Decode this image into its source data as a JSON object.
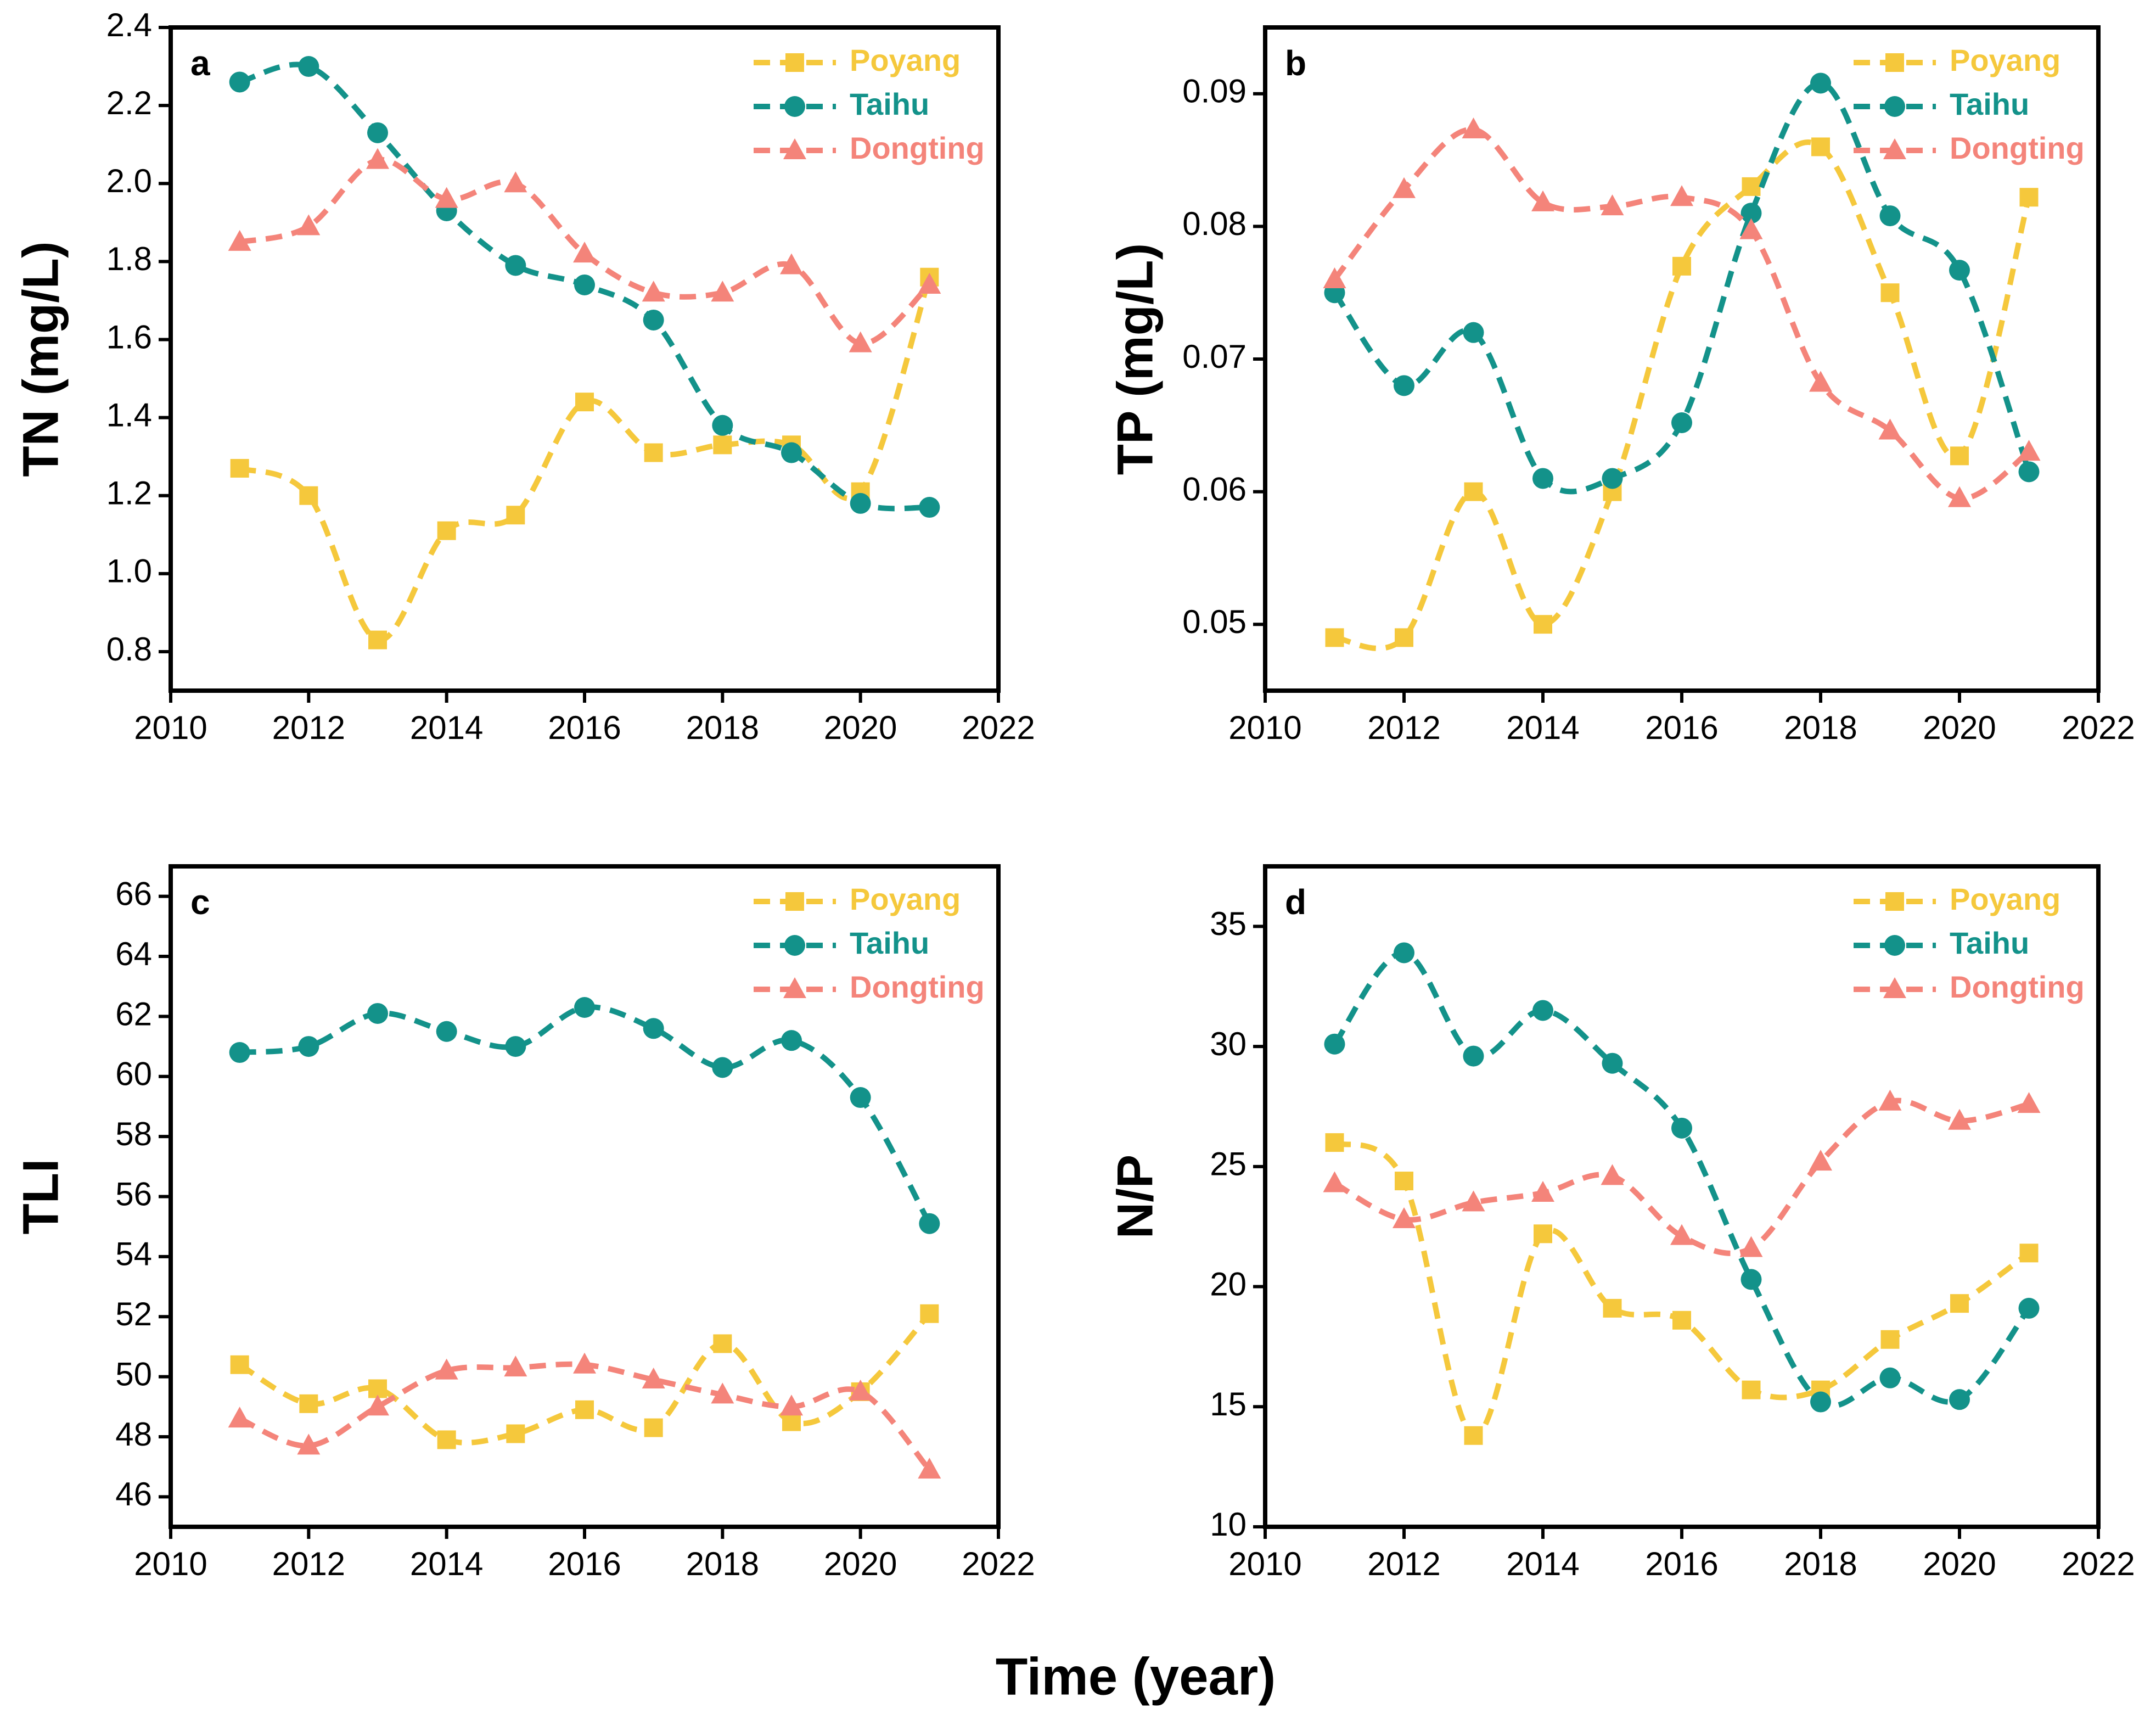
{
  "xlabel": "Time (year)",
  "chart_data": [
    {
      "type": "line",
      "panel_label": "a",
      "ylabel": "TN (mg/L)",
      "x": [
        2011,
        2012,
        2013,
        2014,
        2015,
        2016,
        2017,
        2018,
        2019,
        2020,
        2021
      ],
      "xlim": [
        2010,
        2022
      ],
      "xticks": [
        2010,
        2012,
        2014,
        2016,
        2018,
        2020,
        2022
      ],
      "ylim": [
        0.7,
        2.4
      ],
      "yticks": [
        0.8,
        {
          "value": 1,
          "label": "1.0"
        },
        1.2,
        1.4,
        1.6,
        1.8,
        {
          "value": 2,
          "label": "2.0"
        },
        2.2,
        2.4
      ],
      "legend": "upper right",
      "series": [
        {
          "name": "Poyang",
          "color": "#f5c83c",
          "marker": "square",
          "values": [
            1.27,
            1.2,
            0.83,
            1.11,
            1.15,
            1.44,
            1.31,
            1.33,
            1.33,
            1.21,
            1.76
          ]
        },
        {
          "name": "Taihu",
          "color": "#13928a",
          "marker": "circle",
          "values": [
            2.26,
            2.3,
            2.13,
            1.93,
            1.79,
            1.74,
            1.65,
            1.38,
            1.31,
            1.18,
            1.17
          ]
        },
        {
          "name": "Dongting",
          "color": "#f4847a",
          "marker": "triangle",
          "values": [
            1.85,
            1.89,
            2.06,
            1.96,
            2.0,
            1.82,
            1.72,
            1.72,
            1.79,
            1.59,
            1.74
          ]
        }
      ]
    },
    {
      "type": "line",
      "panel_label": "b",
      "ylabel": "TP (mg/L)",
      "x": [
        2011,
        2012,
        2013,
        2014,
        2015,
        2016,
        2017,
        2018,
        2019,
        2020,
        2021
      ],
      "xlim": [
        2010,
        2022
      ],
      "xticks": [
        2010,
        2012,
        2014,
        2016,
        2018,
        2020,
        2022
      ],
      "ylim": [
        0.045,
        0.095
      ],
      "yticks": [
        0.05,
        0.06,
        0.07,
        0.08,
        0.09
      ],
      "legend": "upper right",
      "series": [
        {
          "name": "Poyang",
          "color": "#f5c83c",
          "marker": "square",
          "values": [
            0.049,
            0.049,
            0.06,
            0.05,
            0.06,
            0.077,
            0.083,
            0.086,
            0.075,
            0.0627,
            0.0822
          ]
        },
        {
          "name": "Taihu",
          "color": "#13928a",
          "marker": "circle",
          "values": [
            0.075,
            0.068,
            0.072,
            0.061,
            0.061,
            0.0652,
            0.081,
            0.0908,
            0.0808,
            0.0767,
            0.0615
          ]
        },
        {
          "name": "Dongting",
          "color": "#f4847a",
          "marker": "triangle",
          "values": [
            0.076,
            0.0828,
            0.0873,
            0.0818,
            0.0815,
            0.0822,
            0.0797,
            0.0682,
            0.0646,
            0.0595,
            0.063
          ]
        }
      ]
    },
    {
      "type": "line",
      "panel_label": "c",
      "ylabel": "TLI",
      "x": [
        2011,
        2012,
        2013,
        2014,
        2015,
        2016,
        2017,
        2018,
        2019,
        2020,
        2021
      ],
      "xlim": [
        2010,
        2022
      ],
      "xticks": [
        2010,
        2012,
        2014,
        2016,
        2018,
        2020,
        2022
      ],
      "ylim": [
        45,
        67
      ],
      "yticks": [
        46,
        48,
        50,
        52,
        54,
        56,
        58,
        60,
        62,
        64,
        66
      ],
      "legend": "upper right",
      "series": [
        {
          "name": "Poyang",
          "color": "#f5c83c",
          "marker": "square",
          "values": [
            50.4,
            49.1,
            49.6,
            47.9,
            48.1,
            48.9,
            48.3,
            51.1,
            48.5,
            49.5,
            52.1
          ]
        },
        {
          "name": "Taihu",
          "color": "#13928a",
          "marker": "circle",
          "values": [
            60.8,
            61.0,
            62.1,
            61.5,
            61.0,
            62.3,
            61.6,
            60.3,
            61.2,
            59.3,
            55.1
          ]
        },
        {
          "name": "Dongting",
          "color": "#f4847a",
          "marker": "triangle",
          "values": [
            48.6,
            47.7,
            49.0,
            50.2,
            50.3,
            50.4,
            49.9,
            49.4,
            49.0,
            49.5,
            46.9
          ]
        }
      ]
    },
    {
      "type": "line",
      "panel_label": "d",
      "ylabel": "N/P",
      "x": [
        2011,
        2012,
        2013,
        2014,
        2015,
        2016,
        2017,
        2018,
        2019,
        2020,
        2021
      ],
      "xlim": [
        2010,
        2022
      ],
      "xticks": [
        2010,
        2012,
        2014,
        2016,
        2018,
        2020,
        2022
      ],
      "ylim": [
        10,
        37.5
      ],
      "yticks": [
        10,
        15,
        20,
        25,
        30,
        35
      ],
      "legend": "upper right",
      "series": [
        {
          "name": "Poyang",
          "color": "#f5c83c",
          "marker": "square",
          "values": [
            26.0,
            24.4,
            13.8,
            22.2,
            19.1,
            18.6,
            15.7,
            15.7,
            17.8,
            19.3,
            21.4
          ]
        },
        {
          "name": "Taihu",
          "color": "#13928a",
          "marker": "circle",
          "values": [
            30.1,
            33.9,
            29.6,
            31.5,
            29.3,
            26.6,
            20.3,
            15.2,
            16.2,
            15.3,
            19.1
          ]
        },
        {
          "name": "Dongting",
          "color": "#f4847a",
          "marker": "triangle",
          "values": [
            24.3,
            22.8,
            23.5,
            23.9,
            24.6,
            22.1,
            21.6,
            25.2,
            27.7,
            26.9,
            27.6
          ]
        }
      ]
    }
  ]
}
